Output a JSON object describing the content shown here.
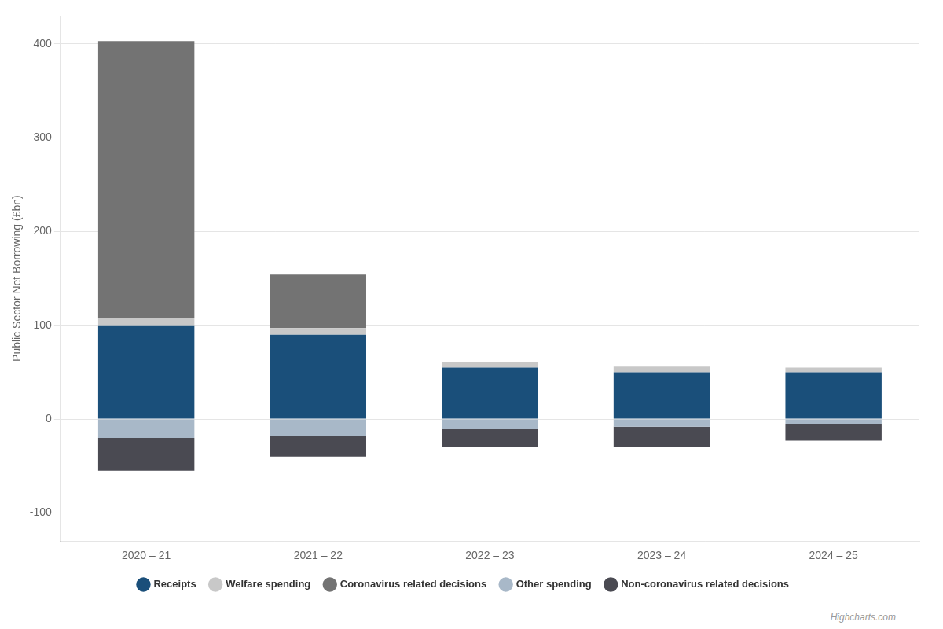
{
  "chart_data": {
    "type": "bar",
    "stacked": true,
    "categories": [
      "2020 – 21",
      "2021 – 22",
      "2022 – 23",
      "2023 – 24",
      "2024 – 25"
    ],
    "series": [
      {
        "name": "Receipts",
        "color": "#1a4f7a",
        "values": [
          100,
          90,
          55,
          50,
          50
        ]
      },
      {
        "name": "Welfare spending",
        "color": "#c8c8c8",
        "values": [
          8,
          7,
          6,
          6,
          5
        ]
      },
      {
        "name": "Coronavirus related decisions",
        "color": "#737373",
        "values": [
          295,
          57,
          0,
          0,
          0
        ]
      },
      {
        "name": "Other spending",
        "color": "#a8b8c8",
        "values": [
          -20,
          -18,
          -10,
          -8,
          -5
        ]
      },
      {
        "name": "Non-coronavirus related decisions",
        "color": "#4a4a52",
        "values": [
          -35,
          -22,
          -20,
          -22,
          -18
        ]
      }
    ],
    "ylabel": "Public Sector Net Borrowing (£bn)",
    "ylim": [
      -130,
      430
    ],
    "yticks": [
      -100,
      0,
      100,
      200,
      300,
      400
    ],
    "grid": true,
    "legend": "bottom",
    "annotations": [
      "Highcharts.com"
    ]
  }
}
